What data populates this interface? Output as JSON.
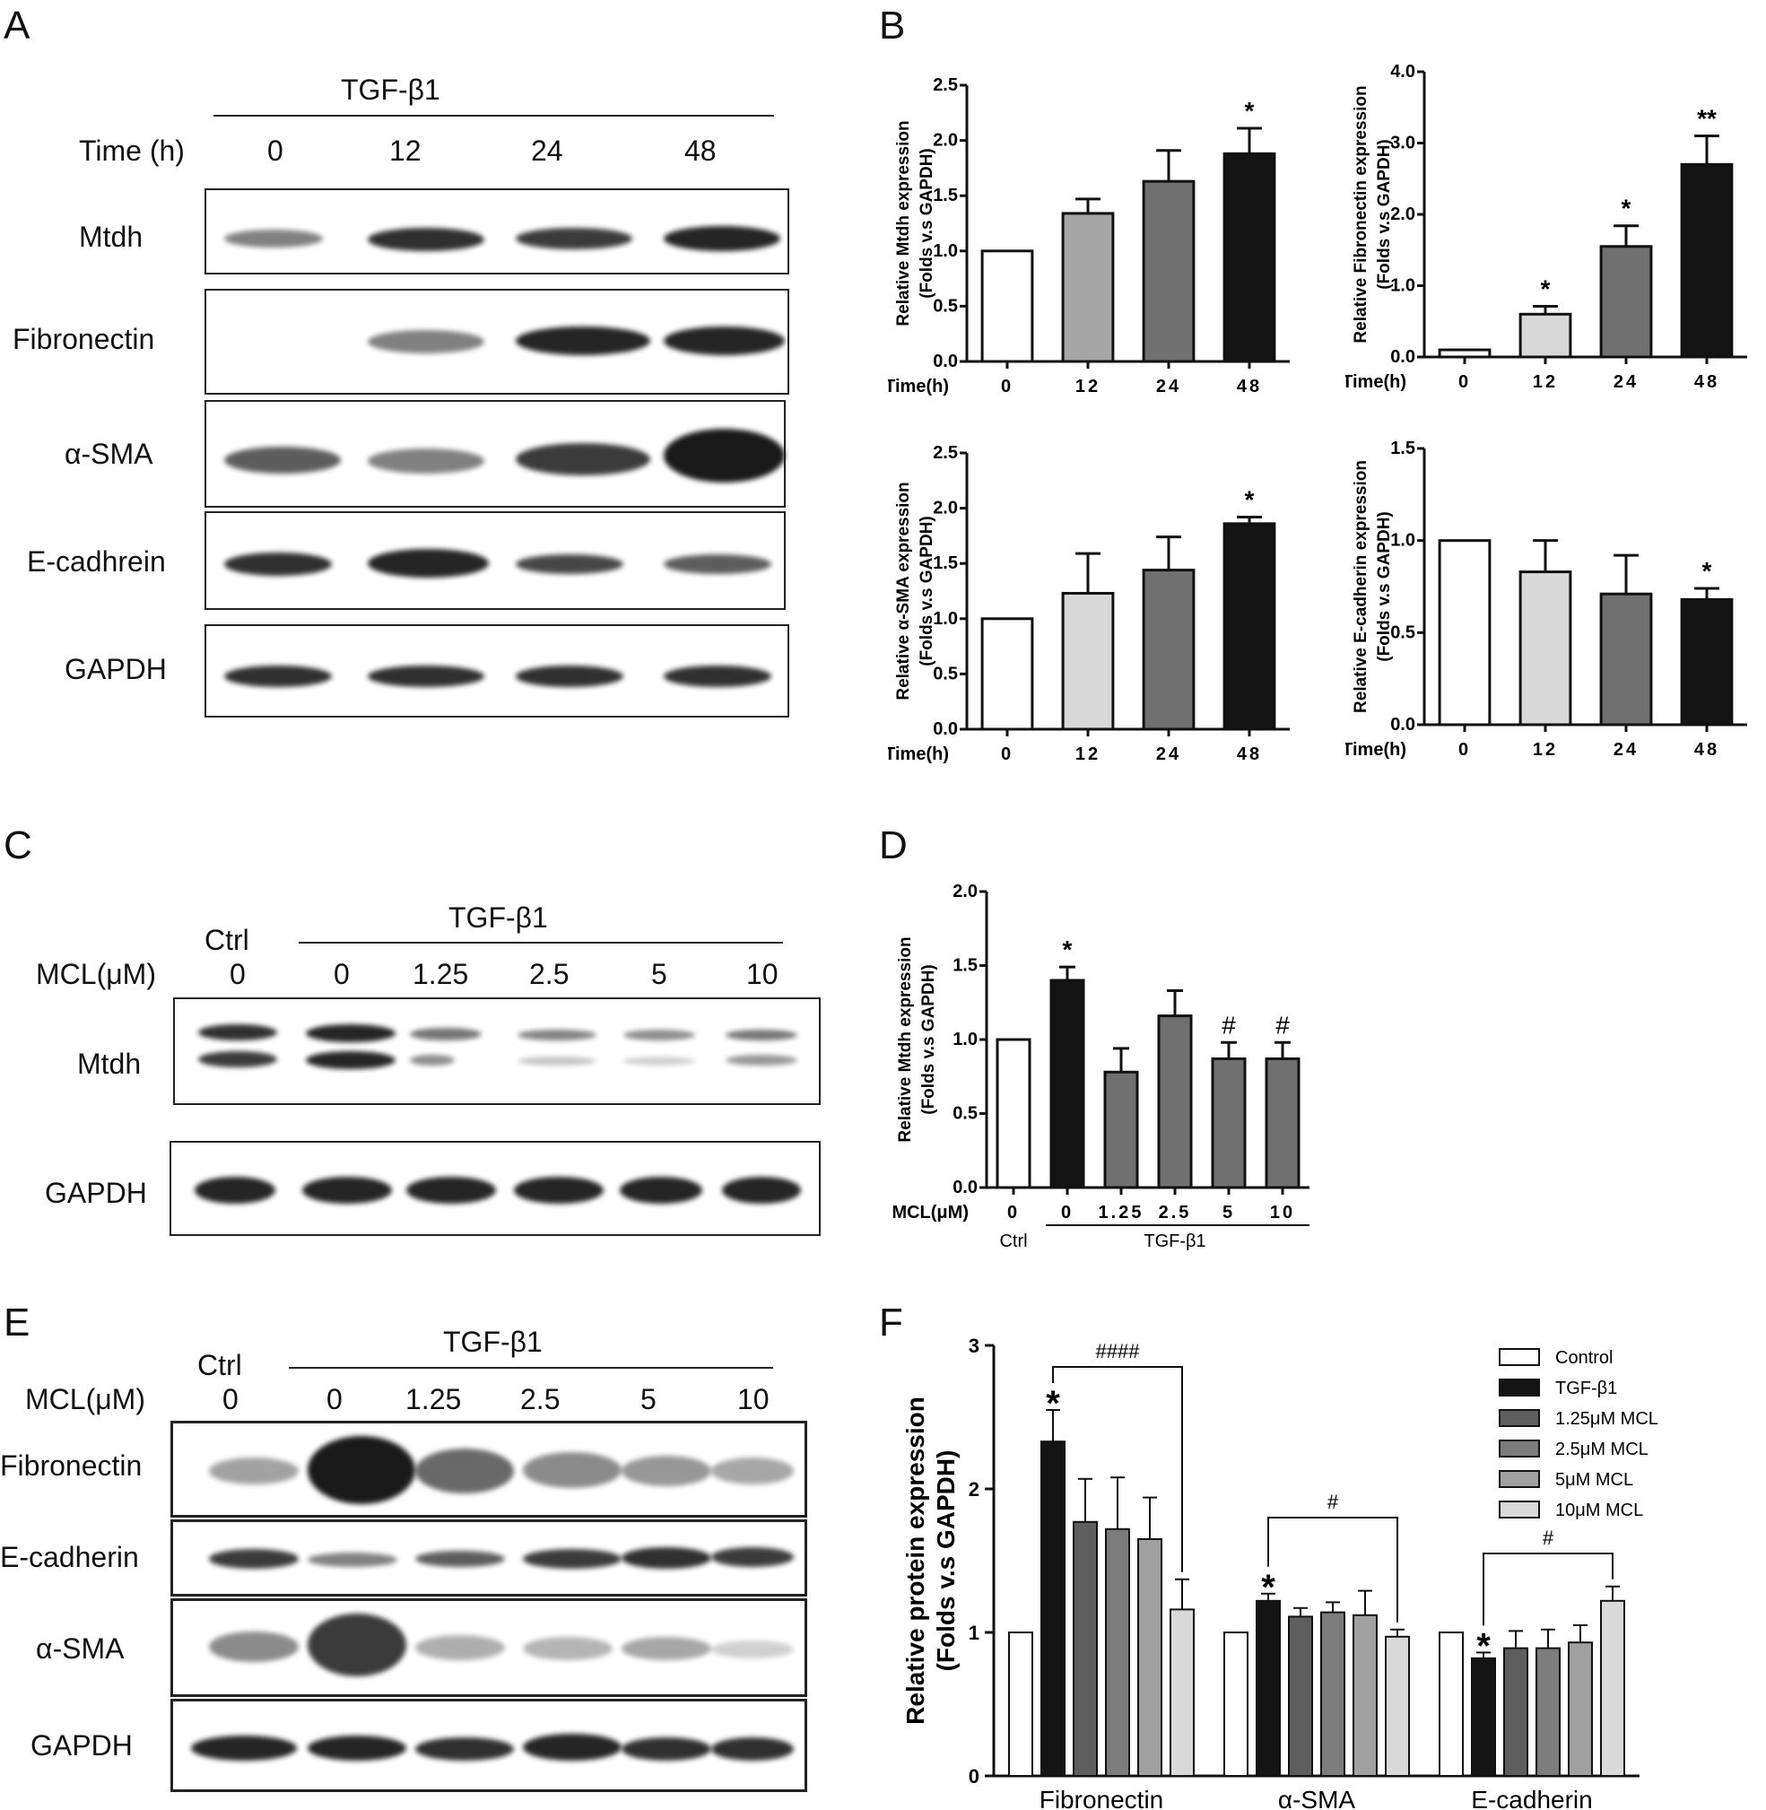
{
  "panels": {
    "A": {
      "letter": "A",
      "treatment": "TGF-β1",
      "time_label": "Time (h)",
      "times": [
        "0",
        "12",
        "24",
        "48"
      ],
      "rows": [
        "Mtdh",
        "Fibronectin",
        "α-SMA",
        "E-cadhrein",
        "GAPDH"
      ]
    },
    "C": {
      "letter": "C",
      "treatment": "TGF-β1",
      "ctrl_label": "Ctrl",
      "dose_label": "MCL(μM)",
      "doses": [
        "0",
        "0",
        "1.25",
        "2.5",
        "5",
        "10"
      ],
      "rows": [
        "Mtdh",
        "GAPDH"
      ]
    },
    "E": {
      "letter": "E",
      "treatment": "TGF-β1",
      "ctrl_label": "Ctrl",
      "dose_label": "MCL(μM)",
      "doses": [
        "0",
        "0",
        "1.25",
        "2.5",
        "5",
        "10"
      ],
      "rows": [
        "Fibronectin",
        "E-cadherin",
        "α-SMA",
        "GAPDH"
      ]
    },
    "B": {
      "letter": "B"
    },
    "D": {
      "letter": "D"
    },
    "F": {
      "letter": "F"
    }
  },
  "colors": {
    "white": "#ffffff",
    "light": "#d8d8d8",
    "mid": "#a6a6a6",
    "dark": "#707070",
    "black": "#141414"
  },
  "chart_data": [
    {
      "id": "B1",
      "type": "bar",
      "ylabel": "Relative Mtdh expression\n(Folds v.s GAPDH)",
      "xlabel": "Time(h)",
      "categories": [
        "0",
        "12",
        "24",
        "48"
      ],
      "values": [
        1.0,
        1.34,
        1.63,
        1.88
      ],
      "errors": [
        0,
        0.13,
        0.28,
        0.23
      ],
      "annotations": [
        "",
        "",
        "",
        "*"
      ],
      "ylim": [
        0,
        2.5
      ],
      "yticks": [
        "0.0",
        "0.5",
        "1.0",
        "1.5",
        "2.0",
        "2.5"
      ],
      "fills": [
        "white",
        "mid",
        "dark",
        "black"
      ]
    },
    {
      "id": "B2",
      "type": "bar",
      "ylabel": "Relative Fibronectin expression\n(Folds v.s GAPDH)",
      "xlabel": "Time(h)",
      "categories": [
        "0",
        "12",
        "24",
        "48"
      ],
      "values": [
        0.1,
        0.6,
        1.55,
        2.7
      ],
      "errors": [
        0,
        0.11,
        0.29,
        0.4
      ],
      "annotations": [
        "",
        "*",
        "*",
        "**"
      ],
      "ylim": [
        0,
        4.0
      ],
      "yticks": [
        "0.0",
        "1.0",
        "2.0",
        "3.0",
        "4.0"
      ],
      "fills": [
        "white",
        "light",
        "dark",
        "black"
      ]
    },
    {
      "id": "B3",
      "type": "bar",
      "ylabel": "Relative α-SMA expression\n(Folds v.s GAPDH)",
      "xlabel": "Time(h)",
      "categories": [
        "0",
        "12",
        "24",
        "48"
      ],
      "values": [
        1.0,
        1.23,
        1.44,
        1.86
      ],
      "errors": [
        0,
        0.36,
        0.3,
        0.06
      ],
      "annotations": [
        "",
        "",
        "",
        "*"
      ],
      "ylim": [
        0,
        2.5
      ],
      "yticks": [
        "0.0",
        "0.5",
        "1.0",
        "1.5",
        "2.0",
        "2.5"
      ],
      "fills": [
        "white",
        "light",
        "dark",
        "black"
      ]
    },
    {
      "id": "B4",
      "type": "bar",
      "ylabel": "Relative E-cadherin expression\n(Folds v.s GAPDH)",
      "xlabel": "Time(h)",
      "categories": [
        "0",
        "12",
        "24",
        "48"
      ],
      "values": [
        1.0,
        0.83,
        0.71,
        0.68
      ],
      "errors": [
        0,
        0.17,
        0.21,
        0.06
      ],
      "annotations": [
        "",
        "",
        "",
        "*"
      ],
      "ylim": [
        0,
        1.5
      ],
      "yticks": [
        "0.0",
        "0.5",
        "1.0",
        "1.5"
      ],
      "fills": [
        "white",
        "light",
        "dark",
        "black"
      ]
    },
    {
      "id": "D",
      "type": "bar",
      "ylabel": "Relative Mtdh expression\n(Folds v.s GAPDH)",
      "xlabel": "MCL(μM)",
      "categories": [
        "0",
        "0",
        "1.25",
        "2.5",
        "5",
        "10"
      ],
      "group_labels": [
        "Ctrl",
        "TGF-β1"
      ],
      "values": [
        1.0,
        1.4,
        0.78,
        1.16,
        0.87,
        0.87
      ],
      "errors": [
        0,
        0.09,
        0.16,
        0.17,
        0.11,
        0.11
      ],
      "annotations": [
        "",
        "*",
        "",
        "",
        "#",
        "#"
      ],
      "ylim": [
        0,
        2.0
      ],
      "yticks": [
        "0.0",
        "0.5",
        "1.0",
        "1.5",
        "2.0"
      ],
      "fills": [
        "white",
        "black",
        "dark",
        "dark",
        "dark",
        "dark"
      ]
    },
    {
      "id": "F",
      "type": "bar",
      "ylabel": "Relative protein expression\n(Folds v.s GAPDH)",
      "categories": [
        "Fibronectin",
        "α-SMA",
        "E-cadherin"
      ],
      "series": [
        {
          "name": "Control",
          "values": [
            1.0,
            1.0,
            1.0
          ],
          "errors": [
            0,
            0,
            0
          ]
        },
        {
          "name": "TGF-β1",
          "values": [
            2.33,
            1.22,
            0.82
          ],
          "errors": [
            0.22,
            0.05,
            0.04
          ]
        },
        {
          "name": "1.25μM MCL",
          "values": [
            1.77,
            1.11,
            0.89
          ],
          "errors": [
            0.3,
            0.06,
            0.12
          ]
        },
        {
          "name": "2.5μM MCL",
          "values": [
            1.72,
            1.14,
            0.89
          ],
          "errors": [
            0.36,
            0.07,
            0.13
          ]
        },
        {
          "name": "5μM MCL",
          "values": [
            1.65,
            1.12,
            0.93
          ],
          "errors": [
            0.29,
            0.17,
            0.12
          ]
        },
        {
          "name": "10μM MCL",
          "values": [
            1.16,
            0.97,
            1.22
          ],
          "errors": [
            0.21,
            0.05,
            0.1
          ]
        }
      ],
      "star_annotation": "*",
      "brackets": [
        "####",
        "#",
        "#"
      ],
      "ylim": [
        0,
        3
      ],
      "yticks": [
        "0",
        "1",
        "2",
        "3"
      ],
      "fills": [
        "white",
        "black",
        "#5e5e5e",
        "#7c7c7c",
        "#a0a0a0",
        "#d9d9d9"
      ]
    }
  ]
}
